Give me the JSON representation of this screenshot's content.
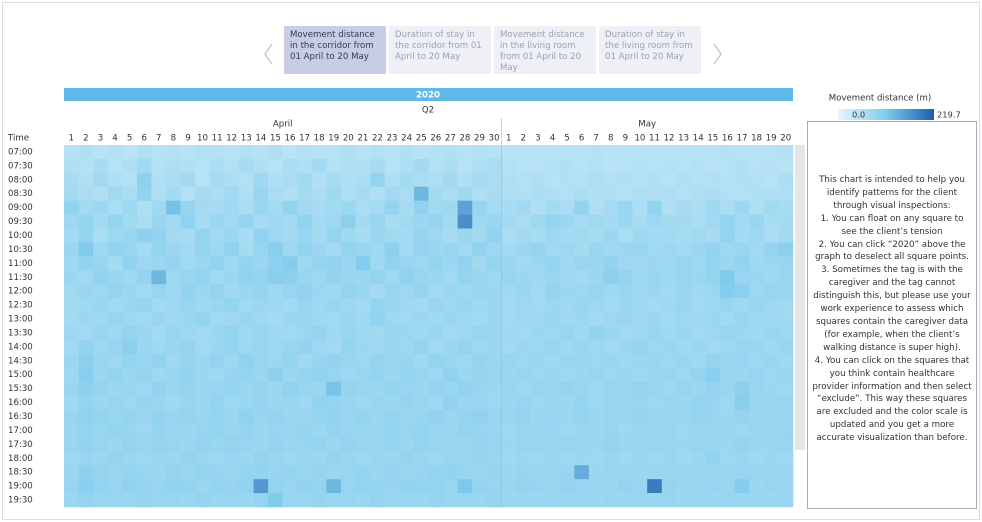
{
  "tabs": [
    {
      "label": "Movement distance in the corridor from 01 April to 20 May",
      "active": true
    },
    {
      "label": "Duration of stay in the corridor from 01 April to 20 May",
      "active": false
    },
    {
      "label": "Movement distance in the living room from 01 April to 20 May",
      "active": false
    },
    {
      "label": "Duration of stay in the living room from 01 April to 20 May",
      "active": false
    }
  ],
  "chart_data": {
    "type": "heatmap",
    "year": "2020",
    "quarter": "Q2",
    "row_axis_label": "Time",
    "months": [
      {
        "name": "April",
        "days": 30
      },
      {
        "name": "May",
        "days": 20
      }
    ],
    "categories": [
      1,
      2,
      3,
      4,
      5,
      6,
      7,
      8,
      9,
      10,
      11,
      12,
      13,
      14,
      15,
      16,
      17,
      18,
      19,
      20,
      21,
      22,
      23,
      24,
      25,
      26,
      27,
      28,
      29,
      30,
      1,
      2,
      3,
      4,
      5,
      6,
      7,
      8,
      9,
      10,
      11,
      12,
      13,
      14,
      15,
      16,
      17,
      18,
      19,
      20
    ],
    "rows": [
      "07:00",
      "07:30",
      "08:00",
      "08:30",
      "09:00",
      "09:30",
      "10:00",
      "10:30",
      "11:00",
      "11:30",
      "12:00",
      "12:30",
      "13:00",
      "13:30",
      "14:00",
      "14:30",
      "15:00",
      "15:30",
      "16:00",
      "16:30",
      "17:00",
      "17:30",
      "18:00",
      "18:30",
      "19:00",
      "19:30"
    ],
    "values": [
      [
        52,
        58,
        49,
        55,
        47,
        60,
        50,
        54,
        48,
        57,
        53,
        49,
        56,
        51,
        58,
        47,
        55,
        50,
        52,
        59,
        48,
        54,
        51,
        56,
        49,
        53,
        57,
        50,
        55,
        52,
        48,
        50,
        52,
        49,
        51,
        50,
        53,
        48,
        52,
        50,
        49,
        51,
        50,
        52,
        48,
        53,
        50,
        49,
        51,
        55
      ],
      [
        60,
        55,
        66,
        52,
        58,
        72,
        54,
        61,
        57,
        50,
        63,
        55,
        68,
        59,
        52,
        64,
        56,
        70,
        53,
        61,
        58,
        66,
        52,
        60,
        71,
        55,
        62,
        50,
        58,
        64,
        55,
        52,
        50,
        53,
        56,
        51,
        54,
        49,
        52,
        55,
        50,
        53,
        51,
        54,
        49,
        52,
        56,
        50,
        53,
        48
      ],
      [
        66,
        58,
        71,
        60,
        54,
        95,
        57,
        63,
        70,
        52,
        68,
        61,
        55,
        76,
        59,
        64,
        72,
        57,
        66,
        60,
        62,
        88,
        58,
        70,
        65,
        61,
        73,
        56,
        68,
        62,
        58,
        55,
        60,
        52,
        57,
        54,
        61,
        55,
        58,
        53,
        56,
        52,
        59,
        54,
        57,
        53,
        60,
        55,
        51,
        62
      ],
      [
        70,
        62,
        58,
        75,
        64,
        90,
        60,
        72,
        55,
        68,
        62,
        74,
        59,
        81,
        65,
        58,
        70,
        63,
        77,
        60,
        68,
        56,
        72,
        64,
        130,
        70,
        62,
        76,
        58,
        66,
        60,
        56,
        63,
        58,
        55,
        62,
        57,
        60,
        54,
        59,
        56,
        61,
        55,
        58,
        62,
        57,
        54,
        60,
        56,
        58
      ],
      [
        90,
        72,
        80,
        65,
        78,
        60,
        74,
        120,
        85,
        70,
        68,
        76,
        62,
        82,
        70,
        88,
        74,
        66,
        72,
        80,
        64,
        70,
        86,
        68,
        92,
        74,
        78,
        150,
        84,
        70,
        66,
        75,
        60,
        72,
        64,
        88,
        60,
        70,
        82,
        62,
        90,
        58,
        68,
        62,
        76,
        64,
        80,
        60,
        72,
        66
      ],
      [
        78,
        85,
        70,
        88,
        74,
        64,
        82,
        72,
        92,
        66,
        80,
        74,
        86,
        68,
        76,
        70,
        90,
        72,
        78,
        96,
        70,
        84,
        66,
        74,
        80,
        86,
        72,
        170,
        78,
        84,
        70,
        64,
        76,
        86,
        80,
        68,
        74,
        70,
        82,
        66,
        78,
        72,
        70,
        64,
        74,
        88,
        72,
        82,
        66,
        70
      ],
      [
        72,
        88,
        64,
        76,
        82,
        94,
        90,
        70,
        68,
        86,
        74,
        80,
        66,
        92,
        78,
        72,
        84,
        70,
        88,
        76,
        66,
        82,
        74,
        70,
        86,
        78,
        68,
        80,
        74,
        90,
        64,
        72,
        66,
        78,
        70,
        74,
        68,
        80,
        64,
        76,
        70,
        72,
        68,
        74,
        66,
        86,
        70,
        78,
        64,
        72
      ],
      [
        82,
        110,
        76,
        90,
        84,
        70,
        88,
        80,
        74,
        86,
        78,
        92,
        70,
        84,
        100,
        76,
        90,
        80,
        72,
        88,
        82,
        76,
        94,
        70,
        86,
        80,
        84,
        74,
        90,
        78,
        72,
        80,
        86,
        74,
        78,
        70,
        82,
        76,
        80,
        84,
        74,
        78,
        72,
        80,
        90,
        76,
        82,
        74,
        86,
        96
      ],
      [
        76,
        90,
        84,
        70,
        92,
        78,
        80,
        86,
        74,
        82,
        90,
        76,
        88,
        80,
        94,
        104,
        78,
        86,
        92,
        80,
        106,
        76,
        90,
        84,
        78,
        88,
        80,
        92,
        74,
        86,
        82,
        74,
        80,
        88,
        76,
        84,
        80,
        92,
        78,
        74,
        80,
        76,
        84,
        78,
        86,
        80,
        90,
        76,
        80,
        84
      ],
      [
        80,
        74,
        90,
        82,
        76,
        86,
        130,
        78,
        84,
        88,
        72,
        80,
        92,
        86,
        100,
        96,
        84,
        78,
        90,
        82,
        80,
        88,
        76,
        92,
        84,
        80,
        74,
        88,
        82,
        78,
        84,
        80,
        76,
        82,
        78,
        74,
        80,
        96,
        86,
        78,
        82,
        76,
        84,
        80,
        88,
        110,
        84,
        80,
        76,
        82
      ],
      [
        74,
        82,
        78,
        86,
        80,
        72,
        84,
        76,
        90,
        80,
        86,
        74,
        82,
        88,
        76,
        84,
        92,
        80,
        76,
        88,
        82,
        70,
        84,
        78,
        86,
        72,
        80,
        76,
        84,
        80,
        76,
        82,
        74,
        86,
        80,
        78,
        84,
        76,
        82,
        78,
        80,
        74,
        82,
        76,
        80,
        104,
        96,
        78,
        84,
        80
      ],
      [
        70,
        76,
        82,
        74,
        80,
        86,
        72,
        78,
        84,
        76,
        82,
        88,
        74,
        80,
        78,
        72,
        84,
        76,
        82,
        78,
        74,
        86,
        80,
        76,
        72,
        84,
        78,
        82,
        76,
        80,
        72,
        78,
        74,
        80,
        76,
        82,
        78,
        74,
        80,
        76,
        72,
        78,
        82,
        74,
        78,
        84,
        76,
        82,
        78,
        74
      ],
      [
        72,
        80,
        76,
        84,
        78,
        74,
        82,
        76,
        80,
        86,
        74,
        78,
        82,
        76,
        72,
        80,
        84,
        78,
        74,
        82,
        76,
        90,
        78,
        74,
        80,
        76,
        82,
        78,
        74,
        80,
        74,
        78,
        76,
        82,
        76,
        80,
        74,
        78,
        82,
        76,
        80,
        74,
        78,
        76,
        80,
        74,
        82,
        76,
        78,
        74
      ],
      [
        78,
        74,
        82,
        76,
        86,
        80,
        72,
        84,
        78,
        74,
        80,
        88,
        76,
        82,
        78,
        74,
        80,
        86,
        76,
        82,
        78,
        74,
        84,
        80,
        76,
        82,
        74,
        78,
        84,
        80,
        76,
        74,
        80,
        78,
        84,
        76,
        90,
        80,
        74,
        78,
        82,
        76,
        80,
        74,
        78,
        84,
        80,
        76,
        82,
        78
      ],
      [
        74,
        90,
        78,
        84,
        96,
        80,
        76,
        82,
        88,
        74,
        80,
        86,
        78,
        84,
        76,
        82,
        90,
        78,
        74,
        86,
        80,
        76,
        82,
        78,
        88,
        74,
        80,
        86,
        78,
        82,
        74,
        80,
        78,
        84,
        76,
        82,
        78,
        74,
        80,
        86,
        78,
        82,
        76,
        80,
        74,
        78,
        84,
        80,
        76,
        82
      ],
      [
        80,
        96,
        84,
        78,
        88,
        82,
        90,
        76,
        84,
        80,
        86,
        78,
        92,
        84,
        80,
        88,
        76,
        84,
        90,
        82,
        78,
        86,
        80,
        84,
        76,
        88,
        82,
        78,
        86,
        80,
        84,
        78,
        82,
        76,
        84,
        80,
        78,
        82,
        76,
        80,
        84,
        78,
        82,
        76,
        86,
        80,
        84,
        78,
        82,
        76
      ],
      [
        78,
        100,
        82,
        88,
        80,
        86,
        78,
        84,
        90,
        80,
        76,
        84,
        88,
        82,
        96,
        80,
        86,
        90,
        84,
        78,
        82,
        88,
        80,
        86,
        84,
        78,
        92,
        80,
        86,
        82,
        80,
        84,
        78,
        82,
        76,
        80,
        84,
        78,
        82,
        76,
        80,
        84,
        78,
        86,
        98,
        82,
        80,
        84,
        78,
        82
      ],
      [
        82,
        94,
        86,
        80,
        84,
        78,
        90,
        82,
        86,
        80,
        84,
        88,
        82,
        86,
        80,
        92,
        84,
        80,
        118,
        86,
        82,
        80,
        88,
        84,
        80,
        86,
        82,
        90,
        84,
        80,
        82,
        78,
        84,
        80,
        86,
        82,
        78,
        84,
        80,
        86,
        82,
        78,
        84,
        80,
        86,
        82,
        96,
        84,
        80,
        78
      ],
      [
        76,
        88,
        80,
        84,
        78,
        86,
        82,
        76,
        84,
        80,
        88,
        78,
        82,
        86,
        80,
        84,
        78,
        90,
        86,
        82,
        78,
        84,
        80,
        86,
        82,
        78,
        92,
        80,
        84,
        78,
        80,
        84,
        78,
        82,
        80,
        86,
        78,
        82,
        80,
        84,
        78,
        82,
        80,
        86,
        84,
        78,
        100,
        82,
        80,
        84
      ],
      [
        84,
        92,
        88,
        82,
        86,
        80,
        90,
        84,
        88,
        82,
        86,
        80,
        92,
        84,
        88,
        82,
        80,
        86,
        90,
        84,
        88,
        82,
        86,
        80,
        84,
        90,
        82,
        86,
        92,
        84,
        82,
        86,
        80,
        84,
        82,
        88,
        80,
        84,
        82,
        86,
        80,
        84,
        82,
        88,
        84,
        80,
        86,
        82,
        84,
        80
      ],
      [
        80,
        86,
        82,
        88,
        84,
        78,
        86,
        82,
        80,
        84,
        88,
        82,
        86,
        80,
        84,
        82,
        88,
        80,
        86,
        84,
        82,
        80,
        86,
        84,
        88,
        82,
        80,
        86,
        84,
        82,
        78,
        82,
        80,
        84,
        78,
        82,
        80,
        84,
        78,
        82,
        80,
        84,
        78,
        82,
        80,
        84,
        78,
        82,
        80,
        84
      ],
      [
        82,
        90,
        84,
        80,
        88,
        82,
        86,
        84,
        80,
        88,
        82,
        86,
        84,
        80,
        86,
        82,
        84,
        88,
        80,
        86,
        84,
        82,
        88,
        80,
        86,
        84,
        82,
        80,
        86,
        84,
        80,
        84,
        82,
        80,
        84,
        82,
        80,
        86,
        82,
        80,
        84,
        82,
        80,
        84,
        82,
        80,
        86,
        82,
        80,
        84
      ],
      [
        78,
        84,
        80,
        86,
        82,
        78,
        84,
        80,
        86,
        82,
        78,
        84,
        80,
        86,
        82,
        78,
        84,
        80,
        86,
        82,
        78,
        84,
        80,
        86,
        82,
        78,
        84,
        80,
        86,
        82,
        76,
        80,
        78,
        82,
        76,
        80,
        78,
        82,
        76,
        80,
        78,
        82,
        76,
        80,
        90,
        78,
        82,
        76,
        80,
        78
      ],
      [
        80,
        94,
        86,
        82,
        88,
        84,
        80,
        86,
        82,
        88,
        84,
        80,
        86,
        90,
        84,
        88,
        82,
        86,
        80,
        84,
        88,
        82,
        86,
        80,
        84,
        88,
        90,
        84,
        82,
        86,
        80,
        84,
        82,
        80,
        84,
        140,
        80,
        84,
        82,
        80,
        84,
        82,
        80,
        84,
        82,
        80,
        84,
        82,
        80,
        84
      ],
      [
        84,
        98,
        88,
        84,
        92,
        86,
        84,
        90,
        86,
        82,
        88,
        84,
        92,
        160,
        88,
        84,
        90,
        86,
        130,
        84,
        88,
        86,
        84,
        90,
        86,
        88,
        84,
        112,
        86,
        84,
        82,
        86,
        84,
        80,
        86,
        84,
        82,
        80,
        86,
        84,
        190,
        86,
        82,
        80,
        84,
        82,
        104,
        80,
        84,
        82
      ],
      [
        80,
        86,
        82,
        84,
        80,
        86,
        82,
        84,
        80,
        86,
        82,
        84,
        80,
        86,
        110,
        84,
        80,
        86,
        82,
        84,
        80,
        86,
        82,
        84,
        80,
        86,
        82,
        84,
        80,
        86,
        80,
        82,
        80,
        84,
        80,
        82,
        80,
        84,
        80,
        82,
        80,
        84,
        80,
        82,
        80,
        84,
        80,
        82,
        80,
        84
      ]
    ],
    "legend_title": "Movement distance (m)",
    "colorlim": [
      0,
      219.7
    ],
    "colorticks": [
      {
        "value": 0,
        "label": "0.0"
      },
      219.7
    ],
    "colors": [
      "#e6f6fc",
      "#7fcbec",
      "#1f5cb0"
    ]
  },
  "note": [
    "This chart is intended to help you identify patterns for the client through visual inspections:",
    "1. You can float on any square to see the client’s tension",
    "2. You can click “2020” above the graph to deselect all square points.",
    "3. Sometimes the tag is with the caregiver and the tag cannot distinguish this, but please use your work experience to assess which squares contain the caregiver data (for example, when the client’s walking distance is super high).",
    "4. You can click on the squares that you think contain healthcare provider information and then select “exclude”. This way these squares are excluded and the color scale is updated and you get a more accurate visualization than before."
  ]
}
